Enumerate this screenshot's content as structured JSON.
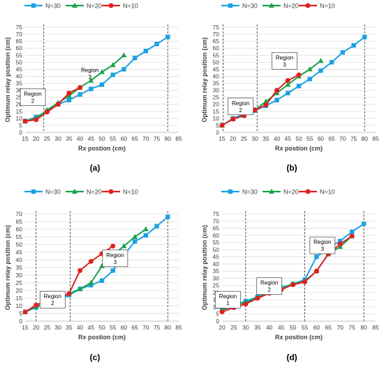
{
  "chart_data": [
    {
      "type": "line",
      "panel_label": "(a)",
      "ylabel": "Optimum relay position (cm)",
      "xlabel": "Rx postion (cm)",
      "xlim": [
        15,
        85
      ],
      "xticks": [
        15,
        20,
        25,
        30,
        35,
        40,
        45,
        50,
        55,
        60,
        65,
        70,
        75,
        80,
        85
      ],
      "ylim": [
        0,
        75
      ],
      "yticks": [
        0,
        5,
        10,
        15,
        20,
        25,
        30,
        35,
        40,
        45,
        50,
        55,
        60,
        65,
        70,
        75
      ],
      "legend": [
        "N=30",
        "N=20",
        "N=10"
      ],
      "region_lines": [
        23.5,
        80
      ],
      "regions": [
        {
          "label": "Region 2",
          "lines": [
            "Region",
            "2"
          ],
          "boxed": true,
          "x": 18.5,
          "y": 25
        },
        {
          "label": "Region 3",
          "lines": [
            "Region",
            "3"
          ],
          "boxed": false,
          "x": 44.5,
          "y": 42
        }
      ],
      "series": [
        {
          "name": "N=30",
          "x": [
            15,
            20,
            25,
            30,
            35,
            40,
            45,
            50,
            55,
            60,
            65,
            70,
            75,
            80
          ],
          "y": [
            8,
            11,
            15,
            20,
            23,
            27,
            31,
            34,
            41,
            45,
            53,
            58,
            63,
            68
          ]
        },
        {
          "name": "N=20",
          "x": [
            15,
            20,
            25,
            30,
            35,
            40,
            45,
            50,
            55,
            60
          ],
          "y": [
            8,
            10,
            16,
            21,
            26,
            32,
            37,
            43,
            48,
            55
          ]
        },
        {
          "name": "N=10",
          "x": [
            15,
            20,
            25,
            30,
            35,
            40
          ],
          "y": [
            8,
            9,
            14.5,
            20,
            28,
            32
          ]
        }
      ]
    },
    {
      "type": "line",
      "panel_label": "(b)",
      "ylabel": "Optimum relay position (cm)",
      "xlabel": "Rx postion (cm)",
      "xlim": [
        15,
        85
      ],
      "xticks": [
        15,
        20,
        25,
        30,
        35,
        40,
        45,
        50,
        55,
        60,
        65,
        70,
        75,
        80,
        85
      ],
      "ylim": [
        0,
        75
      ],
      "yticks": [
        0,
        5,
        10,
        15,
        20,
        25,
        30,
        35,
        40,
        45,
        50,
        55,
        60,
        65,
        70,
        75
      ],
      "legend": [
        "N=30",
        "N=20",
        "N=10"
      ],
      "region_lines": [
        15.5,
        31,
        80
      ],
      "regions": [
        {
          "label": "Region 2",
          "lines": [
            "Region",
            "2"
          ],
          "boxed": true,
          "x": 23.5,
          "y": 18.5
        },
        {
          "label": "Region 3",
          "lines": [
            "Region",
            "3"
          ],
          "boxed": true,
          "x": 43.5,
          "y": 51
        }
      ],
      "series": [
        {
          "name": "N=30",
          "x": [
            15,
            20,
            25,
            30,
            35,
            40,
            45,
            50,
            55,
            60,
            65,
            70,
            75,
            80
          ],
          "y": [
            5,
            10,
            13,
            15.5,
            19,
            23,
            28,
            33,
            38,
            44,
            50,
            57,
            62,
            68
          ]
        },
        {
          "name": "N=20",
          "x": [
            15,
            20,
            25,
            30,
            35,
            40,
            45,
            50,
            55,
            60
          ],
          "y": [
            5,
            9.5,
            12,
            16,
            22,
            28,
            34,
            40,
            45,
            51
          ]
        },
        {
          "name": "N=10",
          "x": [
            15,
            20,
            25,
            30,
            35,
            40,
            45,
            50
          ],
          "y": [
            5,
            9.5,
            12,
            16,
            19.5,
            30,
            37,
            41
          ]
        }
      ]
    },
    {
      "type": "line",
      "panel_label": "(c)",
      "ylabel": "Optimum relay position (cm)",
      "xlabel": "Rx postion (cm)",
      "xlim": [
        15,
        85
      ],
      "xticks": [
        15,
        20,
        25,
        30,
        35,
        40,
        45,
        50,
        55,
        60,
        65,
        70,
        75,
        80,
        85
      ],
      "ylim": [
        0,
        70
      ],
      "yticks": [
        0,
        5,
        10,
        15,
        20,
        25,
        30,
        35,
        40,
        45,
        50,
        55,
        60,
        65,
        70
      ],
      "legend": [
        "N=30",
        "N=20",
        "N=10"
      ],
      "region_lines": [
        20,
        35.5,
        80
      ],
      "regions": [
        {
          "label": "Region 2",
          "lines": [
            "Region",
            "2"
          ],
          "boxed": true,
          "x": 27.5,
          "y": 14
        },
        {
          "label": "Region 3",
          "lines": [
            "Region",
            "3"
          ],
          "boxed": true,
          "x": 56,
          "y": 41
        }
      ],
      "series": [
        {
          "name": "N=30",
          "x": [
            15,
            20,
            25,
            30,
            35,
            40,
            45,
            50,
            55,
            60,
            65,
            70,
            75,
            80
          ],
          "y": [
            6,
            9,
            12,
            14,
            17,
            21,
            23.5,
            26.5,
            33,
            43,
            52,
            56,
            62,
            68
          ]
        },
        {
          "name": "N=20",
          "x": [
            15,
            20,
            25,
            30,
            35,
            40,
            45,
            50,
            55,
            60,
            65,
            70
          ],
          "y": [
            6,
            9.5,
            12,
            15,
            18,
            21,
            25,
            36,
            43,
            49,
            55,
            60
          ]
        },
        {
          "name": "N=10",
          "x": [
            15,
            20,
            25,
            30,
            35,
            40,
            45,
            50,
            55
          ],
          "y": [
            6,
            10.5,
            13.5,
            15,
            18,
            33,
            39,
            44,
            49
          ]
        }
      ]
    },
    {
      "type": "line",
      "panel_label": "(d)",
      "ylabel": "Optimum relay position (cm)",
      "xlabel": "Rx postion (cm)",
      "xlim": [
        20,
        85
      ],
      "xticks": [
        20,
        25,
        30,
        35,
        40,
        45,
        50,
        55,
        60,
        65,
        70,
        75,
        80,
        85
      ],
      "ylim": [
        0,
        75
      ],
      "yticks": [
        0,
        5,
        10,
        15,
        20,
        25,
        30,
        35,
        40,
        45,
        50,
        55,
        60,
        65,
        70,
        75
      ],
      "legend": [
        "N=30",
        "N=20",
        "N=10"
      ],
      "region_lines": [
        30,
        55,
        80
      ],
      "regions": [
        {
          "label": "Region 1",
          "lines": [
            "Region",
            "1"
          ],
          "boxed": true,
          "x": 22.5,
          "y": 15
        },
        {
          "label": "Region 2",
          "lines": [
            "Region",
            "2"
          ],
          "boxed": true,
          "x": 40,
          "y": 24.5
        },
        {
          "label": "Region 3",
          "lines": [
            "Region",
            "3"
          ],
          "boxed": true,
          "x": 62.5,
          "y": 53
        }
      ],
      "series": [
        {
          "name": "N=30",
          "x": [
            20,
            25,
            30,
            35,
            40,
            45,
            50,
            55,
            60,
            65,
            70,
            75,
            80
          ],
          "y": [
            7.5,
            11,
            14,
            17,
            20.5,
            23.5,
            26,
            29,
            45,
            51,
            56,
            62.5,
            68
          ]
        },
        {
          "name": "N=20",
          "x": [
            20,
            25,
            30,
            35,
            40,
            45,
            50,
            55,
            60,
            65,
            70,
            75
          ],
          "y": [
            8,
            11,
            13,
            16.5,
            20,
            22.5,
            26,
            28,
            35,
            47,
            52,
            59.5
          ]
        },
        {
          "name": "N=10",
          "x": [
            20,
            25,
            30,
            35,
            40,
            45,
            50,
            55,
            60,
            65,
            70,
            75
          ],
          "y": [
            6.5,
            9.5,
            12,
            16,
            19.5,
            22,
            25.5,
            27.5,
            35,
            47,
            54,
            59.5
          ]
        }
      ]
    }
  ],
  "colors": {
    "N=30": "#1ba1e2",
    "N=20": "#1aa34a",
    "N=10": "#e02020"
  },
  "markers": {
    "N=30": "square",
    "N=20": "triangle",
    "N=10": "circle"
  }
}
